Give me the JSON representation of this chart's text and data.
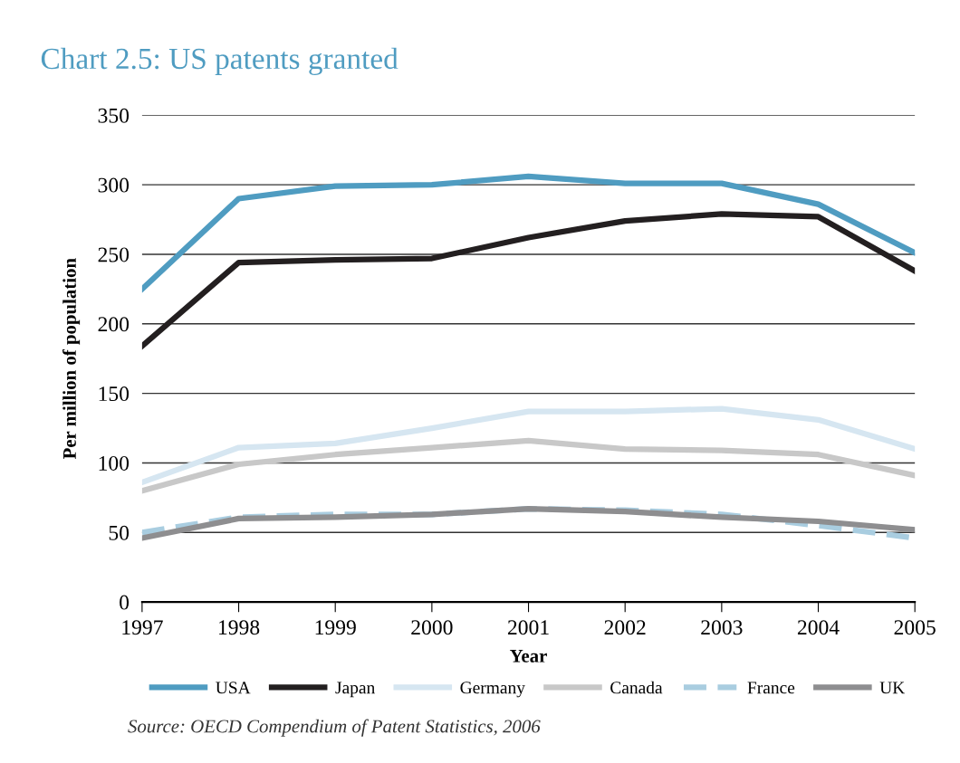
{
  "chart_data": {
    "type": "line",
    "title": "Chart 2.5: US patents granted",
    "xlabel": "Year",
    "ylabel": "Per million of population",
    "x": [
      1997,
      1998,
      1999,
      2000,
      2001,
      2002,
      2003,
      2004,
      2005
    ],
    "xlim": [
      1997,
      2005
    ],
    "xticks": [
      1997,
      1998,
      1999,
      2000,
      2001,
      2002,
      2003,
      2004,
      2005
    ],
    "ylim": [
      0,
      350
    ],
    "yticks": [
      0,
      50,
      100,
      150,
      200,
      250,
      300,
      350
    ],
    "grid": "y",
    "legend": "bottom",
    "marker": "none",
    "series": [
      {
        "name": "USA",
        "color": "#4f9cc1",
        "values": [
          225,
          290,
          299,
          300,
          306,
          301,
          301,
          286,
          251
        ]
      },
      {
        "name": "Japan",
        "color": "#231f20",
        "values": [
          184,
          244,
          246,
          247,
          262,
          274,
          279,
          277,
          238
        ]
      },
      {
        "name": "Germany",
        "color": "#d6e6f1",
        "values": [
          86,
          111,
          114,
          125,
          137,
          137,
          139,
          131,
          110
        ]
      },
      {
        "name": "Canada",
        "color": "#c8c8c8",
        "values": [
          80,
          99,
          106,
          111,
          116,
          110,
          109,
          106,
          91
        ]
      },
      {
        "name": "France",
        "color": "#a9cde0",
        "line_style": "dashed",
        "values": [
          50,
          61,
          63,
          63,
          67,
          66,
          63,
          55,
          46
        ]
      },
      {
        "name": "UK",
        "color": "#8e8e90",
        "values": [
          46,
          60,
          61,
          63,
          67,
          65,
          61,
          58,
          52
        ]
      }
    ],
    "annotations": [
      "Source: OECD Compendium of Patent Statistics, 2006"
    ]
  }
}
